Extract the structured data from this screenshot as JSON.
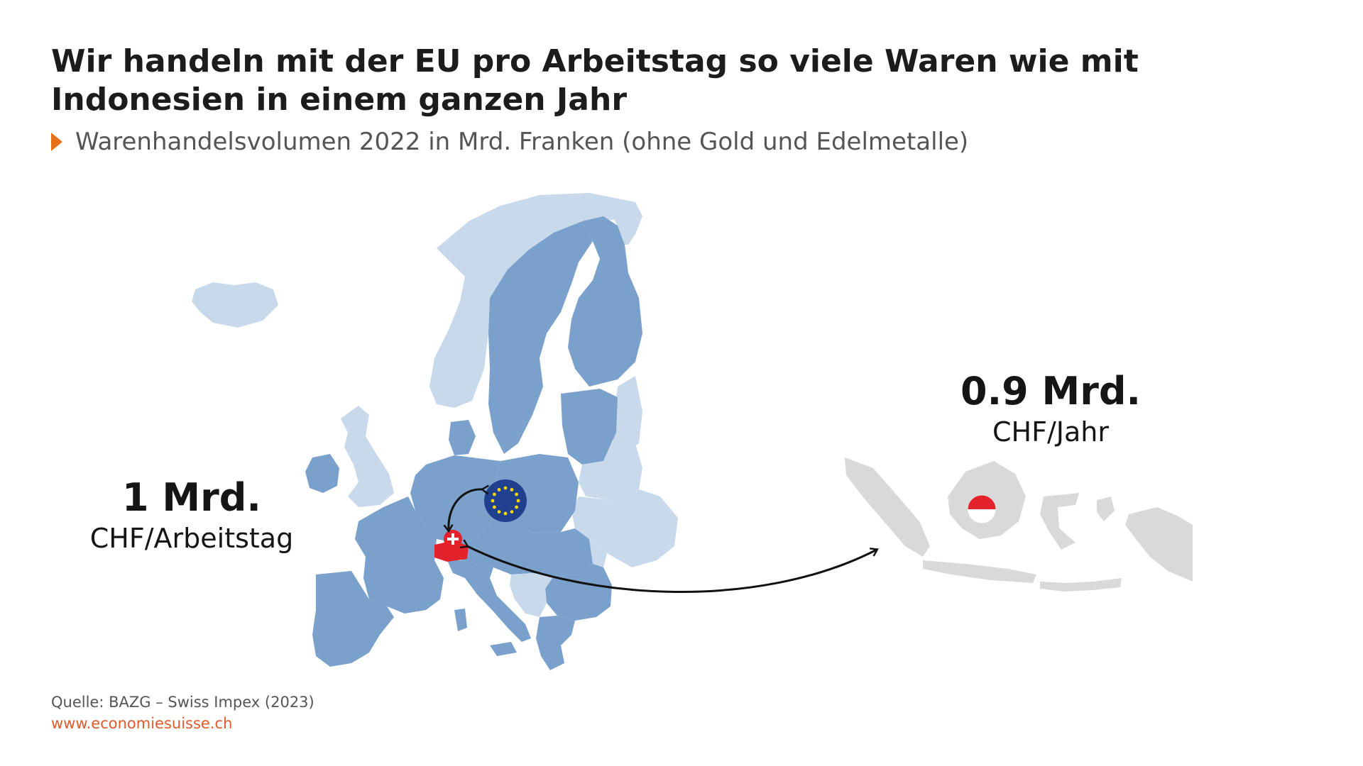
{
  "header": {
    "title": "Wir handeln mit der EU pro Arbeitstag so viele Waren wie mit Indonesien in einem ganzen Jahr",
    "subtitle": "Warenhandelsvolumen 2022 in Mrd. Franken (ohne Gold und Edelmetalle)"
  },
  "stats": {
    "eu": {
      "value": "1 Mrd.",
      "unit": "CHF/Arbeitstag"
    },
    "indonesia": {
      "value": "0.9 Mrd.",
      "unit": "CHF/Jahr"
    }
  },
  "footer": {
    "source": "Quelle: BAZG – Swiss Impex (2023)",
    "website": "www.economiesuisse.ch"
  },
  "colors": {
    "eu_members": "#7aa0cc",
    "non_eu_europe": "#c9d9ec",
    "indonesia_region": "#d9d9d9",
    "switzerland": "#e3222b",
    "eu_flag": "#1f3f8f",
    "accent": "#e8701a",
    "link": "#e05a2a"
  },
  "icons": {
    "eu_flag": "eu-flag-icon",
    "swiss_flag": "swiss-flag-icon",
    "indonesia_flag": "indonesia-flag-icon"
  }
}
